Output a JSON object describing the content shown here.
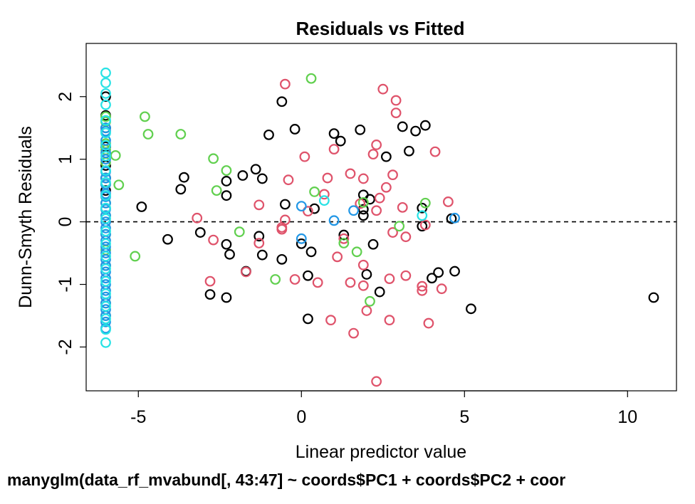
{
  "chart_data": {
    "type": "scatter",
    "title": "Residuals vs Fitted",
    "xlabel": "Linear predictor value",
    "ylabel": "Dunn-Smyth Residuals",
    "caption": "manyglm(data_rf_mvabund[, 43:47] ~ coords$PC1 + coords$PC2 + coor",
    "xlim": [
      -6.6,
      11.5
    ],
    "ylim": [
      -2.7,
      2.85
    ],
    "xticks": [
      -5,
      0,
      5,
      10
    ],
    "yticks": [
      -2,
      -1,
      0,
      1,
      2
    ],
    "reference_line": {
      "y": 0,
      "style": "dashed"
    },
    "grid": false,
    "series": [
      {
        "color": "#000000",
        "points": [
          [
            -6,
            2.0
          ],
          [
            -6,
            1.7
          ],
          [
            -6,
            1.5
          ],
          [
            -6,
            1.2
          ],
          [
            -6,
            0.9
          ],
          [
            -6,
            0.7
          ],
          [
            -6,
            0.5
          ],
          [
            -4.9,
            0.24
          ],
          [
            -4.1,
            -0.28
          ],
          [
            -3.7,
            0.52
          ],
          [
            -3.6,
            0.71
          ],
          [
            -3.1,
            -0.17
          ],
          [
            -2.8,
            -1.16
          ],
          [
            -2.3,
            0.65
          ],
          [
            -2.3,
            0.42
          ],
          [
            -2.3,
            -0.36
          ],
          [
            -2.2,
            -0.52
          ],
          [
            -2.3,
            -1.21
          ],
          [
            -1.8,
            0.74
          ],
          [
            -1.7,
            -0.79
          ],
          [
            -1.4,
            0.84
          ],
          [
            -1.3,
            -0.23
          ],
          [
            -1.2,
            0.69
          ],
          [
            -1.2,
            -0.53
          ],
          [
            -1.0,
            1.39
          ],
          [
            -0.6,
            1.92
          ],
          [
            -0.6,
            -0.6
          ],
          [
            -0.5,
            0.28
          ],
          [
            -0.2,
            1.48
          ],
          [
            0,
            -0.35
          ],
          [
            0.2,
            -0.86
          ],
          [
            0.2,
            -1.55
          ],
          [
            0.3,
            -0.48
          ],
          [
            0.4,
            0.21
          ],
          [
            1.0,
            1.41
          ],
          [
            1.2,
            1.29
          ],
          [
            1.3,
            -0.21
          ],
          [
            1.8,
            1.47
          ],
          [
            1.9,
            0.43
          ],
          [
            1.9,
            0.2
          ],
          [
            1.9,
            0.1
          ],
          [
            2.0,
            -0.84
          ],
          [
            2.1,
            0.36
          ],
          [
            2.2,
            -0.36
          ],
          [
            2.4,
            -1.12
          ],
          [
            2.6,
            1.04
          ],
          [
            3.1,
            1.52
          ],
          [
            3.3,
            1.13
          ],
          [
            3.5,
            1.45
          ],
          [
            3.7,
            -0.07
          ],
          [
            3.7,
            0.22
          ],
          [
            3.8,
            1.54
          ],
          [
            4.0,
            -0.9
          ],
          [
            4.2,
            -0.81
          ],
          [
            4.6,
            0.05
          ],
          [
            4.7,
            -0.79
          ],
          [
            5.2,
            -1.39
          ],
          [
            10.8,
            -1.21
          ]
        ]
      },
      {
        "color": "#DF536B",
        "points": [
          [
            -3.2,
            0.06
          ],
          [
            -2.8,
            -0.95
          ],
          [
            -2.7,
            -0.29
          ],
          [
            -1.7,
            -0.8
          ],
          [
            -1.3,
            0.27
          ],
          [
            -1.3,
            -0.34
          ],
          [
            -0.6,
            -0.09
          ],
          [
            -0.6,
            -0.12
          ],
          [
            -0.5,
            2.2
          ],
          [
            -0.5,
            0.03
          ],
          [
            -0.4,
            0.67
          ],
          [
            -0.2,
            -0.92
          ],
          [
            0.1,
            1.04
          ],
          [
            0.2,
            0.17
          ],
          [
            0.5,
            -0.97
          ],
          [
            0.7,
            0.44
          ],
          [
            0.8,
            0.7
          ],
          [
            0.9,
            -1.57
          ],
          [
            1.0,
            1.16
          ],
          [
            1.1,
            -0.56
          ],
          [
            1.3,
            -0.27
          ],
          [
            1.5,
            0.77
          ],
          [
            1.5,
            -0.97
          ],
          [
            1.6,
            -1.78
          ],
          [
            1.8,
            0.29
          ],
          [
            1.9,
            0.69
          ],
          [
            1.9,
            -0.69
          ],
          [
            1.9,
            -1.02
          ],
          [
            2.0,
            -1.42
          ],
          [
            2.2,
            1.08
          ],
          [
            2.3,
            1.23
          ],
          [
            2.3,
            0.18
          ],
          [
            2.3,
            -2.55
          ],
          [
            2.4,
            0.38
          ],
          [
            2.5,
            2.12
          ],
          [
            2.6,
            0.55
          ],
          [
            2.7,
            -0.91
          ],
          [
            2.7,
            -1.57
          ],
          [
            2.8,
            0.75
          ],
          [
            2.8,
            -0.17
          ],
          [
            2.9,
            1.94
          ],
          [
            2.9,
            1.74
          ],
          [
            3.1,
            0.23
          ],
          [
            3.2,
            -0.24
          ],
          [
            3.2,
            -0.86
          ],
          [
            3.7,
            -1.1
          ],
          [
            3.7,
            -1.03
          ],
          [
            3.8,
            -0.05
          ],
          [
            3.9,
            -1.62
          ],
          [
            4.1,
            1.12
          ],
          [
            4.3,
            -1.07
          ],
          [
            4.5,
            0.32
          ]
        ]
      },
      {
        "color": "#61D04F",
        "points": [
          [
            -6,
            1.68
          ],
          [
            -6,
            1.6
          ],
          [
            -6,
            1.25
          ],
          [
            -6,
            1.15
          ],
          [
            -6,
            0.95
          ],
          [
            -6,
            0.6
          ],
          [
            -6,
            0.3
          ],
          [
            -6,
            0.1
          ],
          [
            -6,
            -0.2
          ],
          [
            -6,
            -0.45
          ],
          [
            -6,
            -0.7
          ],
          [
            -6,
            -1.3
          ],
          [
            -6,
            -1.5
          ],
          [
            -5.7,
            1.06
          ],
          [
            -5.6,
            0.59
          ],
          [
            -5.1,
            -0.55
          ],
          [
            -4.8,
            1.68
          ],
          [
            -4.7,
            1.4
          ],
          [
            -3.7,
            1.4
          ],
          [
            -2.7,
            1.01
          ],
          [
            -2.6,
            0.5
          ],
          [
            -2.3,
            0.82
          ],
          [
            -1.9,
            -0.16
          ],
          [
            -0.8,
            -0.92
          ],
          [
            0.3,
            2.29
          ],
          [
            0.4,
            0.48
          ],
          [
            1.3,
            -0.34
          ],
          [
            1.7,
            -0.48
          ],
          [
            1.9,
            0.31
          ],
          [
            2.1,
            -1.27
          ],
          [
            3.0,
            -0.07
          ],
          [
            3.8,
            0.3
          ]
        ]
      },
      {
        "color": "#2297E6",
        "points": [
          [
            -6,
            1.5
          ],
          [
            -6,
            1.45
          ],
          [
            -6,
            1.3
          ],
          [
            -6,
            1.1
          ],
          [
            -6,
            1.0
          ],
          [
            -6,
            0.8
          ],
          [
            -6,
            0.7
          ],
          [
            -6,
            0.6
          ],
          [
            -6,
            0.45
          ],
          [
            -6,
            0.4
          ],
          [
            -6,
            0.3
          ],
          [
            -6,
            0.2
          ],
          [
            -6,
            0.1
          ],
          [
            -6,
            0.0
          ],
          [
            -6,
            -0.1
          ],
          [
            -6,
            -0.2
          ],
          [
            -6,
            -0.3
          ],
          [
            -6,
            -0.4
          ],
          [
            -6,
            -0.5
          ],
          [
            -6,
            -0.6
          ],
          [
            -6,
            -0.7
          ],
          [
            -6,
            -0.8
          ],
          [
            -6,
            -0.9
          ],
          [
            -6,
            -1.0
          ],
          [
            -6,
            -1.1
          ],
          [
            -6,
            -1.2
          ],
          [
            -6,
            -1.3
          ],
          [
            -6,
            -1.4
          ],
          [
            -6,
            -1.5
          ],
          [
            -6,
            -1.6
          ],
          [
            -6,
            -1.7
          ],
          [
            0,
            0.25
          ],
          [
            0,
            -0.27
          ],
          [
            1.0,
            0.02
          ],
          [
            1.6,
            0.18
          ],
          [
            4.7,
            0.06
          ]
        ]
      },
      {
        "color": "#28E2E5",
        "points": [
          [
            -6,
            2.38
          ],
          [
            -6,
            2.22
          ],
          [
            -6,
            2.05
          ],
          [
            -6,
            1.87
          ],
          [
            -6,
            1.62
          ],
          [
            -6,
            1.42
          ],
          [
            -6,
            1.22
          ],
          [
            -6,
            1.05
          ],
          [
            -6,
            0.82
          ],
          [
            -6,
            0.63
          ],
          [
            -6,
            0.42
          ],
          [
            -6,
            0.22
          ],
          [
            -6,
            0.05
          ],
          [
            -6,
            -0.15
          ],
          [
            -6,
            -0.35
          ],
          [
            -6,
            -0.55
          ],
          [
            -6,
            -0.75
          ],
          [
            -6,
            -0.95
          ],
          [
            -6,
            -1.15
          ],
          [
            -6,
            -1.35
          ],
          [
            -6,
            -1.55
          ],
          [
            -6,
            -1.72
          ],
          [
            -6,
            -1.93
          ],
          [
            0.7,
            0.34
          ],
          [
            3.7,
            0.1
          ]
        ]
      }
    ]
  }
}
